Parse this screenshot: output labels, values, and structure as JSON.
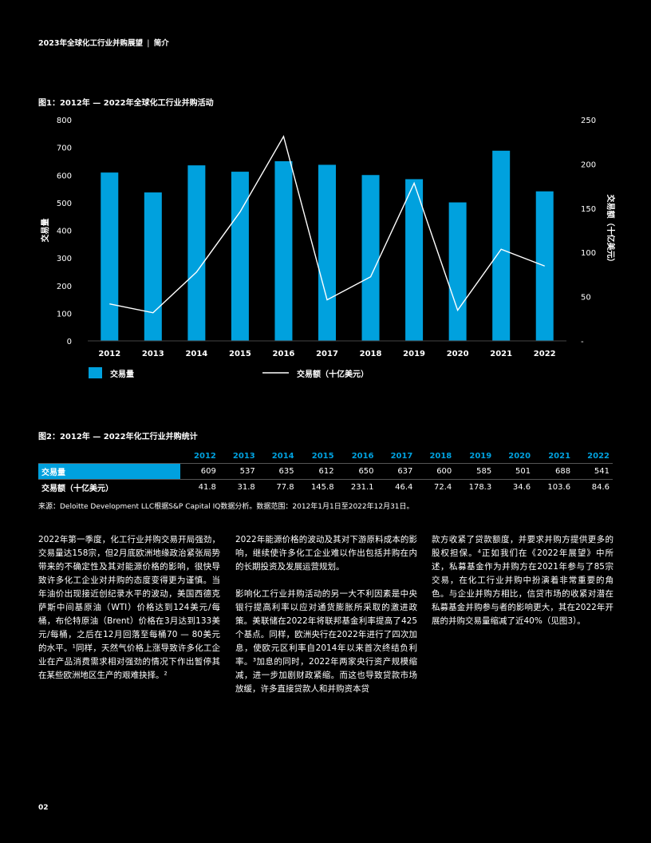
{
  "header": {
    "title": "2023年全球化工行业并购展望",
    "separator": "|",
    "section": "简介"
  },
  "figure1": {
    "title": "图1：2012年 — 2022年全球化工行业并购活动",
    "legend": {
      "bar_label": "交易量",
      "line_label": "交易额（十亿美元）"
    }
  },
  "chart_data": {
    "type": "bar",
    "categories": [
      "2012",
      "2013",
      "2014",
      "2015",
      "2016",
      "2017",
      "2018",
      "2019",
      "2020",
      "2021",
      "2022"
    ],
    "series": [
      {
        "name": "交易量",
        "type": "bar",
        "axis": "left",
        "color": "#00a1de",
        "values": [
          609,
          537,
          635,
          612,
          650,
          637,
          600,
          585,
          501,
          688,
          541
        ]
      },
      {
        "name": "交易额（十亿美元）",
        "type": "line",
        "axis": "right",
        "color": "#ffffff",
        "values": [
          41.8,
          31.8,
          77.8,
          145.8,
          231.1,
          46.4,
          72.4,
          178.3,
          34.6,
          103.6,
          84.6
        ]
      }
    ],
    "ylabel": "交易量",
    "y2label": "交易额（十亿美元）",
    "ylim": [
      0,
      800
    ],
    "y2lim": [
      0,
      250
    ],
    "yticks": [
      "0",
      "100",
      "200",
      "300",
      "400",
      "500",
      "600",
      "700",
      "800"
    ],
    "y2ticks": [
      "-",
      "50",
      "100",
      "150",
      "200",
      "250"
    ],
    "grid": false,
    "legend_position": "bottom"
  },
  "figure2": {
    "title": "图2：2012年 — 2022年化工行业并购统计",
    "columns": [
      "2012",
      "2013",
      "2014",
      "2015",
      "2016",
      "2017",
      "2018",
      "2019",
      "2020",
      "2021",
      "2022"
    ],
    "rows": [
      {
        "label": "交易量",
        "values": [
          "609",
          "537",
          "635",
          "612",
          "650",
          "637",
          "600",
          "585",
          "501",
          "688",
          "541"
        ]
      },
      {
        "label": "交易额（十亿美元）",
        "values": [
          "41.8",
          "31.8",
          "77.8",
          "145.8",
          "231.1",
          "46.4",
          "72.4",
          "178.3",
          "34.6",
          "103.6",
          "84.6"
        ]
      }
    ]
  },
  "source": "来源：Deloitte Development LLC根据S&P Capital IQ数据分析。数据范围：2012年1月1日至2022年12月31日。",
  "body": {
    "col1": [
      "2022年第一季度，化工行业并购交易开局强劲，交易量达158宗，但2月底欧洲地缘政治紧张局势带来的不确定性及其对能源价格的影响，很快导致许多化工企业对并购的态度变得更为谨慎。当年油价出现接近创纪录水平的波动，美国西德克萨斯中间基原油（WTI）价格达到124美元/每桶，布伦特原油（Brent）价格在3月达到133美元/每桶，之后在12月回落至每桶70 — 80美元的水平。¹同样，天然气价格上涨导致许多化工企业在产品消费需求相对强劲的情况下作出暂停其在某些欧洲地区生产的艰难抉择。²"
    ],
    "col2": [
      "2022年能源价格的波动及其对下游原料成本的影响，继续使许多化工企业难以作出包括并购在内的长期投资及发展运营规划。",
      "影响化工行业并购活动的另一大不利因素是中央银行提高利率以应对通货膨胀所采取的激进政策。美联储在2022年将联邦基金利率提高了425个基点。同样，欧洲央行在2022年进行了四次加息，使欧元区利率自2014年以来首次终结负利率。³加息的同时，2022年两家央行资产规模缩减，进一步加剧财政紧缩。而这也导致贷款市场放缓，许多直接贷款人和并购资本贷"
    ],
    "col3": [
      "款方收紧了贷款额度，并要求并购方提供更多的股权担保。⁴正如我们在《2022年展望》中所述，私募基金作为并购方在2021年参与了85宗交易，在化工行业并购中扮演着非常重要的角色。与企业并购方相比，信贷市场的收紧对潜在私募基金并购参与者的影响更大，其在2022年开展的并购交易量缩减了近40%（见图3）。"
    ]
  },
  "page_number": "02"
}
